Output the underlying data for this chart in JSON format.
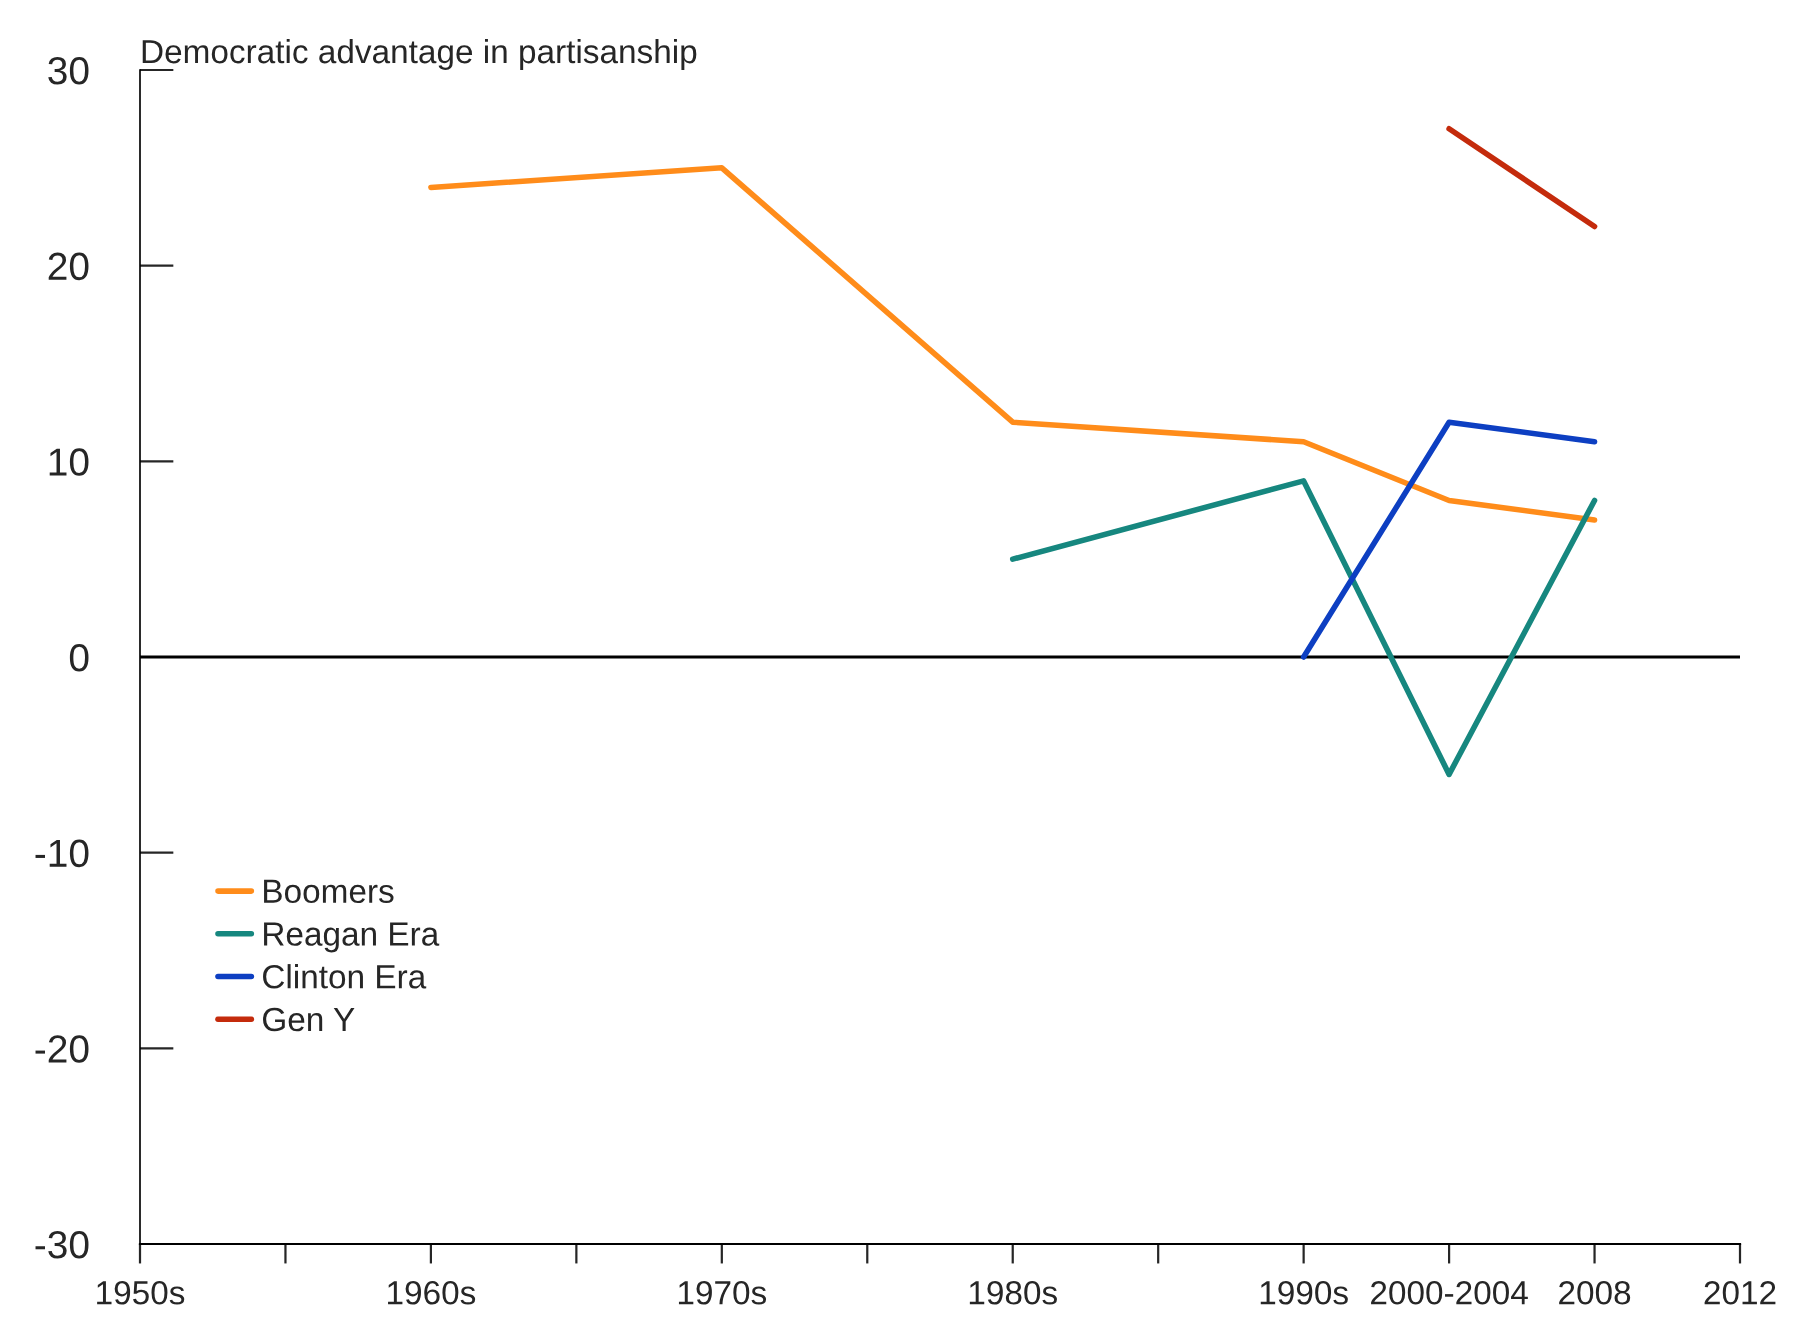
{
  "chart_data": {
    "type": "line",
    "ylabel": "Democratic advantage in partisanship",
    "categories": [
      "1950s",
      null,
      "1960s",
      null,
      "1970s",
      null,
      "1980s",
      null,
      "1990s",
      "2000-2004",
      "2008",
      "2012"
    ],
    "series": [
      {
        "name": "Boomers",
        "color": "#ff8c1a",
        "values": [
          null,
          null,
          24,
          null,
          25,
          null,
          12,
          null,
          11,
          8,
          7,
          null
        ]
      },
      {
        "name": "Reagan Era",
        "color": "#16877f",
        "values": [
          null,
          null,
          null,
          null,
          null,
          null,
          5,
          null,
          9,
          -6,
          8,
          null
        ]
      },
      {
        "name": "Clinton Era",
        "color": "#0d3fc2",
        "values": [
          null,
          null,
          null,
          null,
          null,
          null,
          null,
          null,
          0,
          12,
          11,
          null
        ]
      },
      {
        "name": "Gen Y",
        "color": "#c42b0c",
        "values": [
          null,
          null,
          null,
          null,
          null,
          null,
          null,
          null,
          null,
          27,
          22,
          null
        ]
      }
    ],
    "ylim": [
      -30,
      30
    ],
    "yticks": [
      -30,
      -20,
      -10,
      0,
      10,
      20,
      30
    ],
    "ref_lines": [
      {
        "axis": "y",
        "value": 0,
        "color": "#000000"
      }
    ],
    "grid": false,
    "legend": "bottom left",
    "marker": "none",
    "line_style": "solid"
  }
}
